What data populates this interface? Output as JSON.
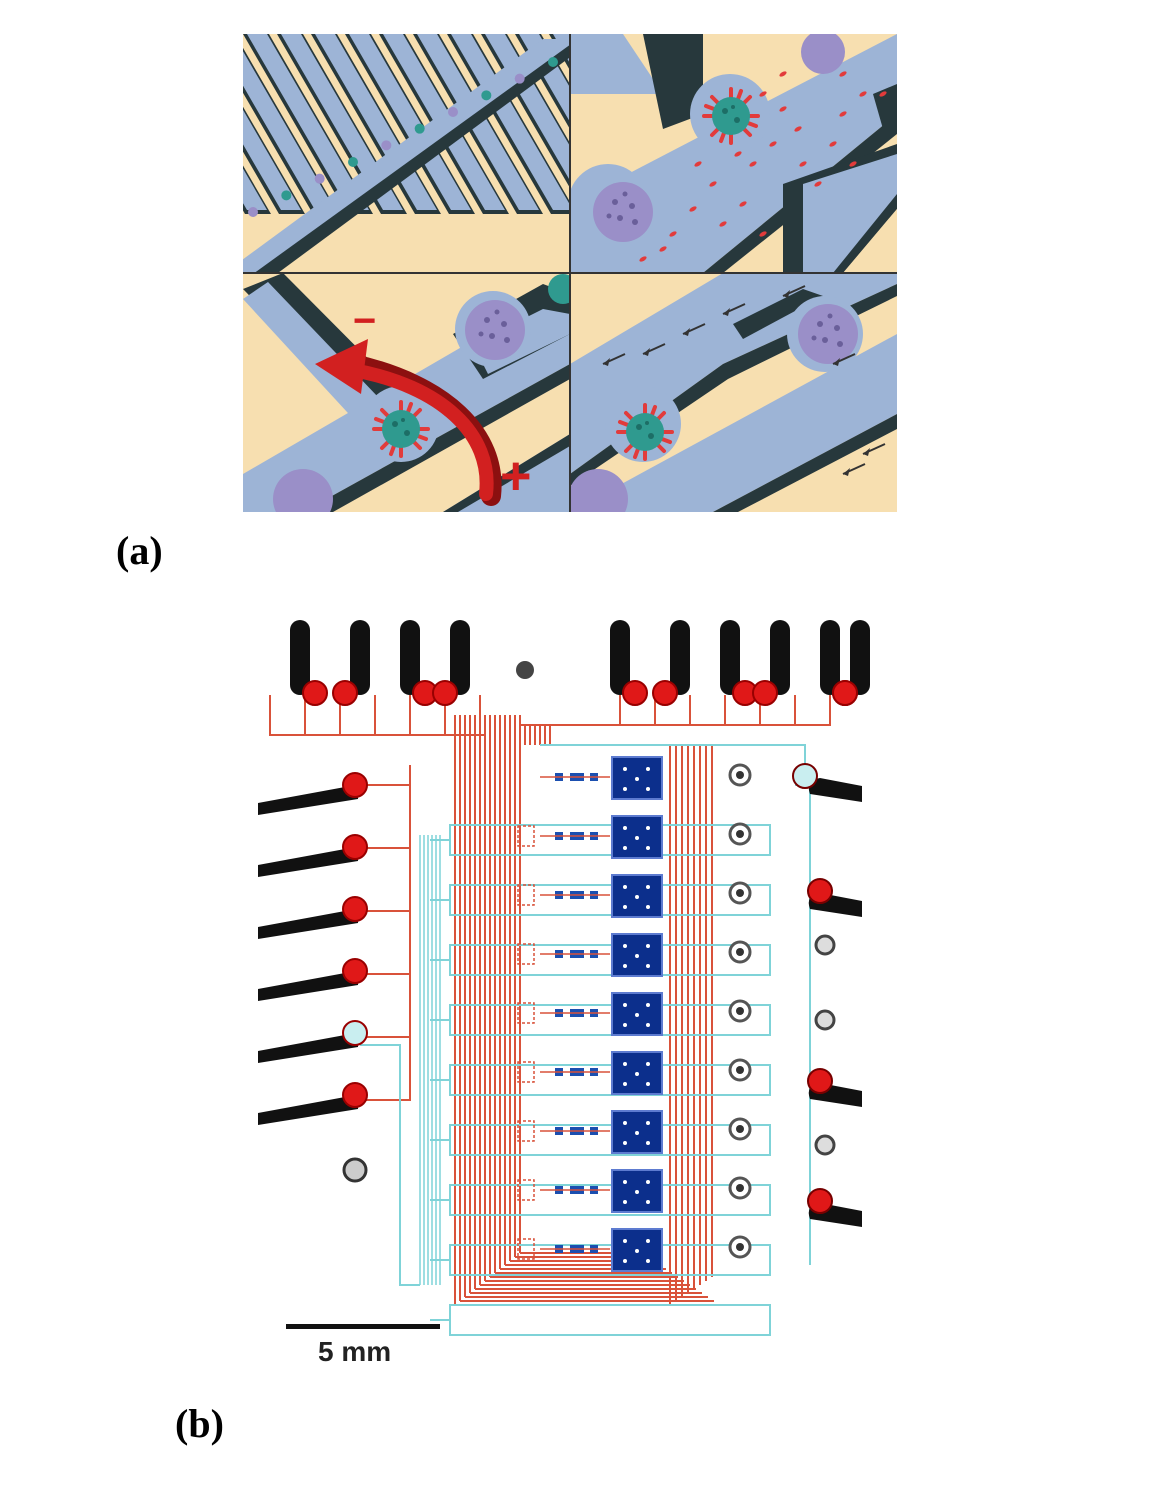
{
  "panel_a": {
    "label": "(a)",
    "minus_sign": "−",
    "plus_sign": "+",
    "colors": {
      "background": "#f7dfb0",
      "channel": "#9db4d6",
      "shadow": "#27383c",
      "virus": "#2f9a8f",
      "spike": "#e23b3b",
      "cell": "#9a8fc8",
      "arrow": "#c81a1a"
    }
  },
  "panel_b": {
    "label": "(b)",
    "scale_bar_label": "5 mm",
    "colors": {
      "control_lines": "#d9523a",
      "flow_lines": "#7fd3d8",
      "chamber": "#0c2f8c",
      "tube": "#111111",
      "port_red": "#e01818"
    }
  }
}
